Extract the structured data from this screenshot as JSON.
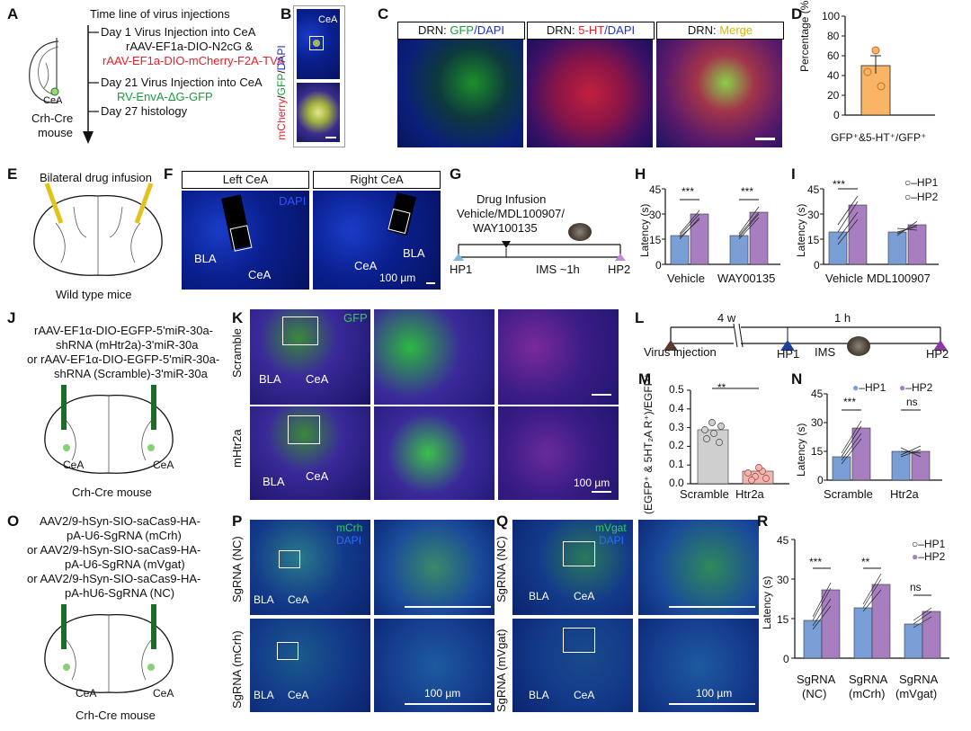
{
  "panels": {
    "A": {
      "label": "A",
      "title": "Time line of  virus injections",
      "day1": "Day 1 Virus Injection into CeA",
      "virus1": "rAAV-EF1a-DIO-N2cG &",
      "virus2": "rAAV-EF1a-DIO-mCherry-F2A-TVA",
      "day21": "Day 21 Virus Injection into CeA",
      "virus3": "RV-EnvA-ΔG-GFP",
      "day27": "Day 27 histology",
      "region": "CeA",
      "mouse1": "Crh-Cre",
      "mouse2": "mouse"
    },
    "B": {
      "label": "B",
      "stain_a": "mCherry",
      "stain_b": "GFP",
      "stain_c": "DAPI",
      "region": "CeA"
    },
    "C": {
      "label": "C",
      "box1_a": "DRN: ",
      "box1_b": "GFP",
      "box1_c": "/DAPI",
      "box2_a": "DRN: ",
      "box2_b": "5-HT",
      "box2_c": "/DAPI",
      "box3_a": "DRN: ",
      "box3_b": "Merge"
    },
    "D": {
      "label": "D",
      "ylabel": "Percentage (%)",
      "xlabel": "GFP⁺&5-HT⁺/GFP⁺",
      "ticks": [
        "100",
        "80",
        "60",
        "40",
        "20",
        "0"
      ]
    },
    "E": {
      "label": "E",
      "title": "Bilateral drug infusion",
      "caption": "Wild type mice"
    },
    "F": {
      "label": "F",
      "left": "Left CeA",
      "right": "Right CeA",
      "dapi": "DAPI",
      "bla": "BLA",
      "cea": "CeA",
      "scale": "100 µm"
    },
    "G": {
      "label": "G",
      "line1": "Drug Infusion",
      "line2": "Vehicle/MDL100907/",
      "line3": "WAY100135",
      "hp1": "HP1",
      "ims": "IMS ~1h",
      "hp2": "HP2"
    },
    "H": {
      "label": "H",
      "ylabel": "Latency (s)",
      "ticks": [
        "45",
        "30",
        "15",
        "0"
      ],
      "groups": [
        "Vehicle",
        "WAY00135"
      ],
      "sig": [
        "***",
        "***"
      ]
    },
    "I": {
      "label": "I",
      "ylabel": "Latency (s)",
      "ticks": [
        "45",
        "30",
        "15",
        "0"
      ],
      "groups": [
        "Vehicle",
        "MDL100907"
      ],
      "sig": [
        "***"
      ],
      "legend": [
        "HP1",
        "HP2"
      ]
    },
    "J": {
      "label": "J",
      "line1": "rAAV-EF1α-DIO-EGFP-5'miR-30a-",
      "line2": "shRNA (mHtr2a)-3'miR-30a",
      "line3": "or rAAV-EF1α-DIO-EGFP-5'miR-30a-",
      "line4": "shRNA (Scramble)-3'miR-30a",
      "cea": "CeA",
      "caption": "Crh-Cre mouse"
    },
    "K": {
      "label": "K",
      "row1": "Scramble",
      "row2": "mHtr2a",
      "gfp": "GFP",
      "bla": "BLA",
      "cea": "CeA",
      "scale": "100 µm"
    },
    "L": {
      "label": "L",
      "w4": "4 w",
      "h1": "1 h",
      "virus": "Virus injection",
      "hp1": "HP1",
      "ims": "IMS",
      "hp2": "HP2"
    },
    "M": {
      "label": "M",
      "ylabel": "(EGFP⁺ & 5HT₂A R⁺)/EGFP⁺",
      "ticks": [
        "0.5",
        "0.4",
        "0.3",
        "0.2",
        "0.1",
        "0.0"
      ],
      "groups": [
        "Scramble",
        "Htr2a"
      ],
      "sig": "**"
    },
    "N": {
      "label": "N",
      "ylabel": "Latency (s)",
      "ticks": [
        "45",
        "30",
        "15",
        "0"
      ],
      "groups": [
        "Scramble",
        "Htr2a"
      ],
      "sig": [
        "***",
        "ns"
      ],
      "legend": [
        "HP1",
        "HP2"
      ]
    },
    "O": {
      "label": "O",
      "line1": "AAV2/9-hSyn-SIO-saCas9-HA-",
      "line2": "pA-U6-SgRNA (mCrh)",
      "line3": "or AAV2/9-hSyn-SIO-saCas9-HA-",
      "line4": "pA-U6-SgRNA (mVgat)",
      "line5": "or AAV2/9-hSyn-SIO-saCas9-HA-",
      "line6": "pA-hU6-SgRNA (NC)",
      "cea": "CeA",
      "caption": "Crh-Cre mouse"
    },
    "P": {
      "label": "P",
      "row1": "SgRNA (NC)",
      "row2": "SgRNA (mCrh)",
      "stain_a": "mCrh",
      "stain_b": "DAPI",
      "bla": "BLA",
      "cea": "CeA",
      "scale": "100 µm"
    },
    "Q": {
      "label": "Q",
      "row1": "SgRNA (NC)",
      "row2": "SgRNA (mVgat)",
      "stain_a": "mVgat",
      "stain_b": "DAPI",
      "bla": "BLA",
      "cea": "CeA",
      "scale": "100 µm"
    },
    "R": {
      "label": "R",
      "ylabel": "Latency (s)",
      "ticks": [
        "45",
        "30",
        "15",
        "0"
      ],
      "groups_a": [
        "SgRNA",
        "SgRNA",
        "SgRNA"
      ],
      "groups_b": [
        "(NC)",
        "(mCrh)",
        "(mVgat)"
      ],
      "sig": [
        "***",
        "**",
        "ns"
      ],
      "legend": [
        "HP1",
        "HP2"
      ]
    }
  },
  "colors": {
    "hp1": "#7a9fd6",
    "hp2": "#a77fc0",
    "orange": "#f9b466",
    "grey": "#cfcfcf",
    "pink": "#f0b6b0",
    "microscope_blue": "#0b238f"
  }
}
